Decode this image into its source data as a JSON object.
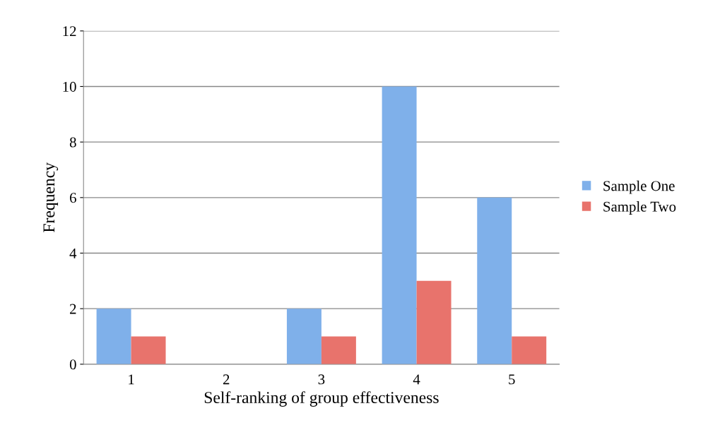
{
  "chart_data": {
    "type": "bar",
    "xlabel": "Self-ranking of group effectiveness",
    "ylabel": "Frequency",
    "categories": [
      "1",
      "2",
      "3",
      "4",
      "5"
    ],
    "series": [
      {
        "name": "Sample One",
        "color": "#7fb0ea",
        "values": [
          2,
          0,
          2,
          10,
          6
        ]
      },
      {
        "name": "Sample Two",
        "color": "#e8736c",
        "values": [
          1,
          0,
          1,
          3,
          1
        ]
      }
    ],
    "ylim": [
      0,
      12
    ],
    "yticks": [
      0,
      2,
      4,
      6,
      8,
      10,
      12
    ],
    "grid": "y",
    "legend": "right"
  }
}
